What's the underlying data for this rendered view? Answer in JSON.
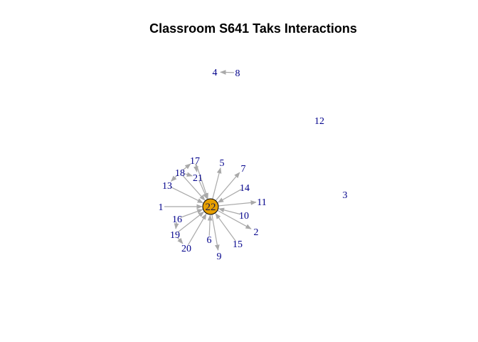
{
  "title": "Classroom S641 Taks Interactions",
  "colors": {
    "edge": "#a9a9a9",
    "label": "#00008b",
    "hub_fill": "#e69f00",
    "hub_stroke": "#000000"
  },
  "hub": "22",
  "nodes": [
    "1",
    "2",
    "3",
    "4",
    "5",
    "6",
    "7",
    "8",
    "9",
    "10",
    "11",
    "12",
    "13",
    "14",
    "15",
    "16",
    "17",
    "18",
    "19",
    "20",
    "21",
    "22"
  ],
  "edges": [
    [
      "1",
      "22"
    ],
    [
      "13",
      "22"
    ],
    [
      "16",
      "22"
    ],
    [
      "19",
      "22"
    ],
    [
      "20",
      "22"
    ],
    [
      "6",
      "22"
    ],
    [
      "21",
      "22"
    ],
    [
      "18",
      "22"
    ],
    [
      "17",
      "22"
    ],
    [
      "22",
      "5"
    ],
    [
      "22",
      "7"
    ],
    [
      "14",
      "22"
    ],
    [
      "22",
      "11"
    ],
    [
      "10",
      "22"
    ],
    [
      "22",
      "2"
    ],
    [
      "15",
      "22"
    ],
    [
      "22",
      "9"
    ],
    [
      "8",
      "4"
    ],
    [
      "16",
      "19"
    ],
    [
      "19",
      "20"
    ],
    [
      "18",
      "21"
    ],
    [
      "17",
      "21"
    ],
    [
      "18",
      "17"
    ],
    [
      "18",
      "13"
    ]
  ]
}
